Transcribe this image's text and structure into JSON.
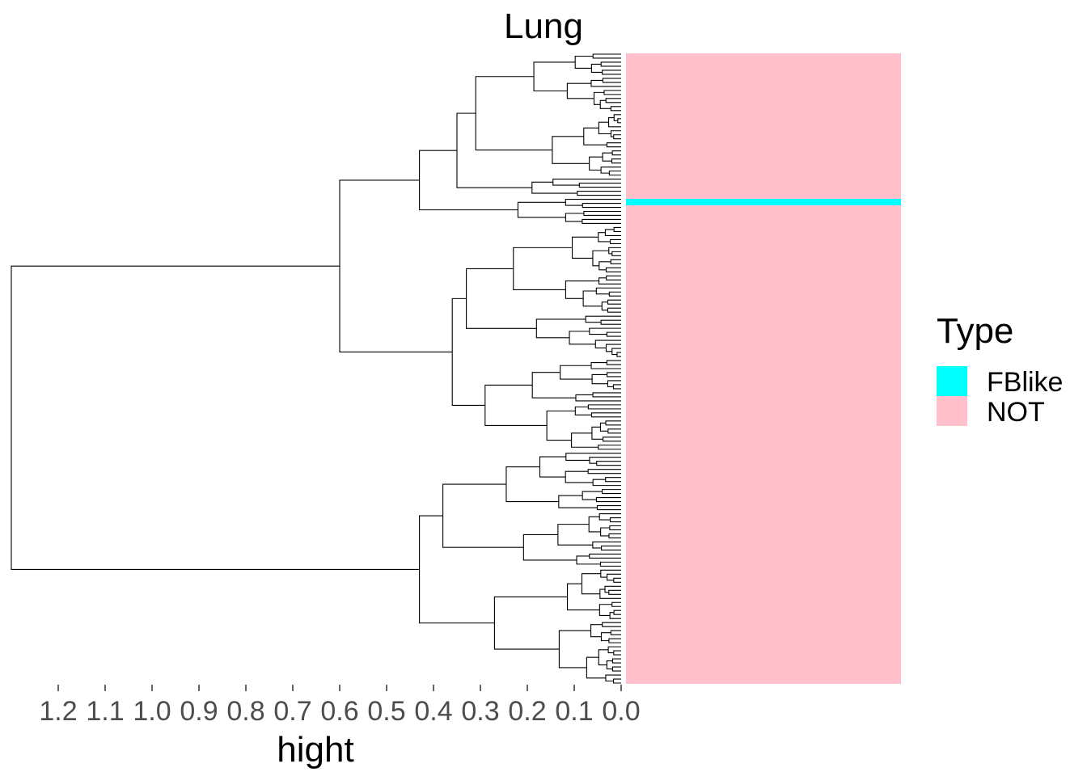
{
  "chart_data": {
    "type": "dendrogram",
    "title": "Lung",
    "xlabel": "hight",
    "x_ticks": [
      "1.2",
      "1.1",
      "1.0",
      "0.9",
      "0.8",
      "0.7",
      "0.6",
      "0.5",
      "0.4",
      "0.3",
      "0.2",
      "0.1",
      "0.0"
    ],
    "x_axis_reversed": true,
    "xlim": [
      1.3,
      0.0
    ],
    "leaf_count": 157,
    "main_merges": [
      {
        "height": 1.3,
        "label": "root"
      },
      {
        "height": 0.6,
        "label": "upper cluster"
      },
      {
        "height": 0.43,
        "label": "lower cluster"
      },
      {
        "height": 0.43,
        "label": "upper-left sub"
      },
      {
        "height": 0.36,
        "label": "upper-middle sub"
      }
    ],
    "annotation_bar": {
      "categories": [
        "FBlike",
        "NOT"
      ],
      "leaf_types_note": "one FBlike leaf near the top, all others NOT",
      "fblike_leaf_index": 23
    },
    "legend": {
      "title": "Type",
      "items": [
        {
          "label": "FBlike",
          "color": "#00FFFF"
        },
        {
          "label": "NOT",
          "color": "#FFC0CB"
        }
      ],
      "position": "right"
    }
  }
}
